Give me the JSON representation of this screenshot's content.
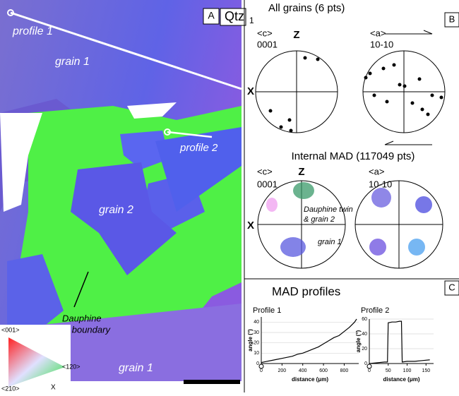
{
  "panel_a": {
    "letter": "A",
    "mineral": "Qtz",
    "mineral_subscript": "1",
    "labels": [
      "profile 1",
      "grain 1",
      "profile 2",
      "grain 2",
      "Dauphine",
      "twin boundary",
      "grain 1"
    ],
    "key": [
      "<001>",
      "<120>",
      "<210>",
      "X"
    ]
  },
  "panel_b": {
    "letter": "B",
    "title_all": "All grains (6 pts)",
    "title_mad": "Internal MAD (117049 pts)",
    "c_axis": "<c>",
    "c_plane": "0001",
    "a_axis": "<a>",
    "a_plane": "10-10",
    "z": "Z",
    "x": "X",
    "annotations": [
      "Dauphine twin",
      "& grain 2",
      "grain 1"
    ]
  },
  "panel_c": {
    "letter": "C",
    "title": "MAD profiles",
    "charts": [
      {
        "type": "line",
        "title": "Profile 1",
        "xlabel": "distance (μm)",
        "ylabel": "angle (°)",
        "x": [
          0,
          50,
          100,
          150,
          200,
          250,
          300,
          350,
          400,
          450,
          500,
          550,
          600,
          650,
          700,
          750,
          800,
          850,
          900,
          920
        ],
        "values": [
          1,
          2,
          3,
          4,
          5,
          6,
          7,
          9,
          10,
          12,
          14,
          16,
          19,
          22,
          25,
          27,
          31,
          35,
          40,
          43
        ],
        "xlim": [
          0,
          940
        ],
        "ylim": [
          0,
          45
        ],
        "xticks": [
          0,
          200,
          400,
          600,
          800
        ],
        "yticks": [
          0,
          10,
          20,
          30,
          40
        ],
        "color": "#000000"
      },
      {
        "type": "line",
        "title": "Profile 2",
        "xlabel": "distance (μm)",
        "ylabel": "angle (°)",
        "x": [
          0,
          20,
          40,
          48,
          50,
          60,
          70,
          80,
          85,
          87,
          100,
          120,
          140,
          160
        ],
        "values": [
          0,
          1,
          2,
          2,
          55,
          56,
          56,
          57,
          57,
          2,
          3,
          3,
          4,
          5
        ],
        "xlim": [
          0,
          170
        ],
        "ylim": [
          0,
          60
        ],
        "xticks": [
          0,
          50,
          100,
          150
        ],
        "yticks": [
          0,
          20,
          40,
          60
        ],
        "color": "#000000"
      }
    ]
  }
}
